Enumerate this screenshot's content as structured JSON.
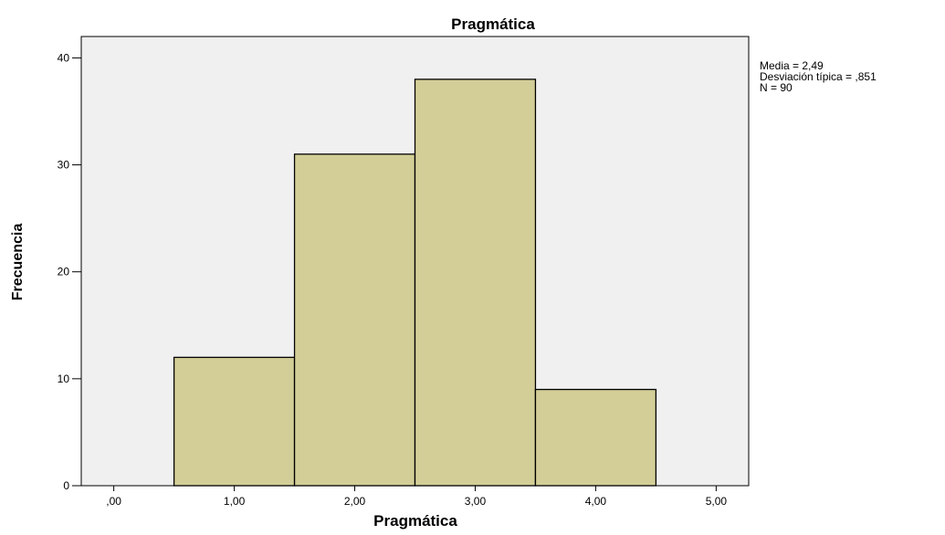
{
  "chart_data": {
    "type": "bar",
    "subtype": "histogram",
    "title": "Pragmática",
    "xlabel": "Pragmática",
    "ylabel": "Frecuencia",
    "bins": [
      {
        "center": 1,
        "value": 12
      },
      {
        "center": 2,
        "value": 31
      },
      {
        "center": 3,
        "value": 38
      },
      {
        "center": 4,
        "value": 9
      }
    ],
    "bin_width": 1,
    "xlim": [
      -0.27,
      5.27
    ],
    "ylim": [
      0,
      42
    ],
    "x_ticks": [
      0,
      1,
      2,
      3,
      4,
      5
    ],
    "x_tick_labels": [
      ",00",
      "1,00",
      "2,00",
      "3,00",
      "4,00",
      "5,00"
    ],
    "y_ticks": [
      0,
      10,
      20,
      30,
      40
    ],
    "y_tick_labels": [
      "0",
      "10",
      "20",
      "30",
      "40"
    ],
    "legend_stats": [
      "Media = 2,49",
      "Desviación típica = ,851",
      "N = 90"
    ],
    "grid": false,
    "colors": {
      "bar_fill": "#d3ce97",
      "plot_background": "#f0f0f0",
      "stroke": "#000000"
    }
  }
}
